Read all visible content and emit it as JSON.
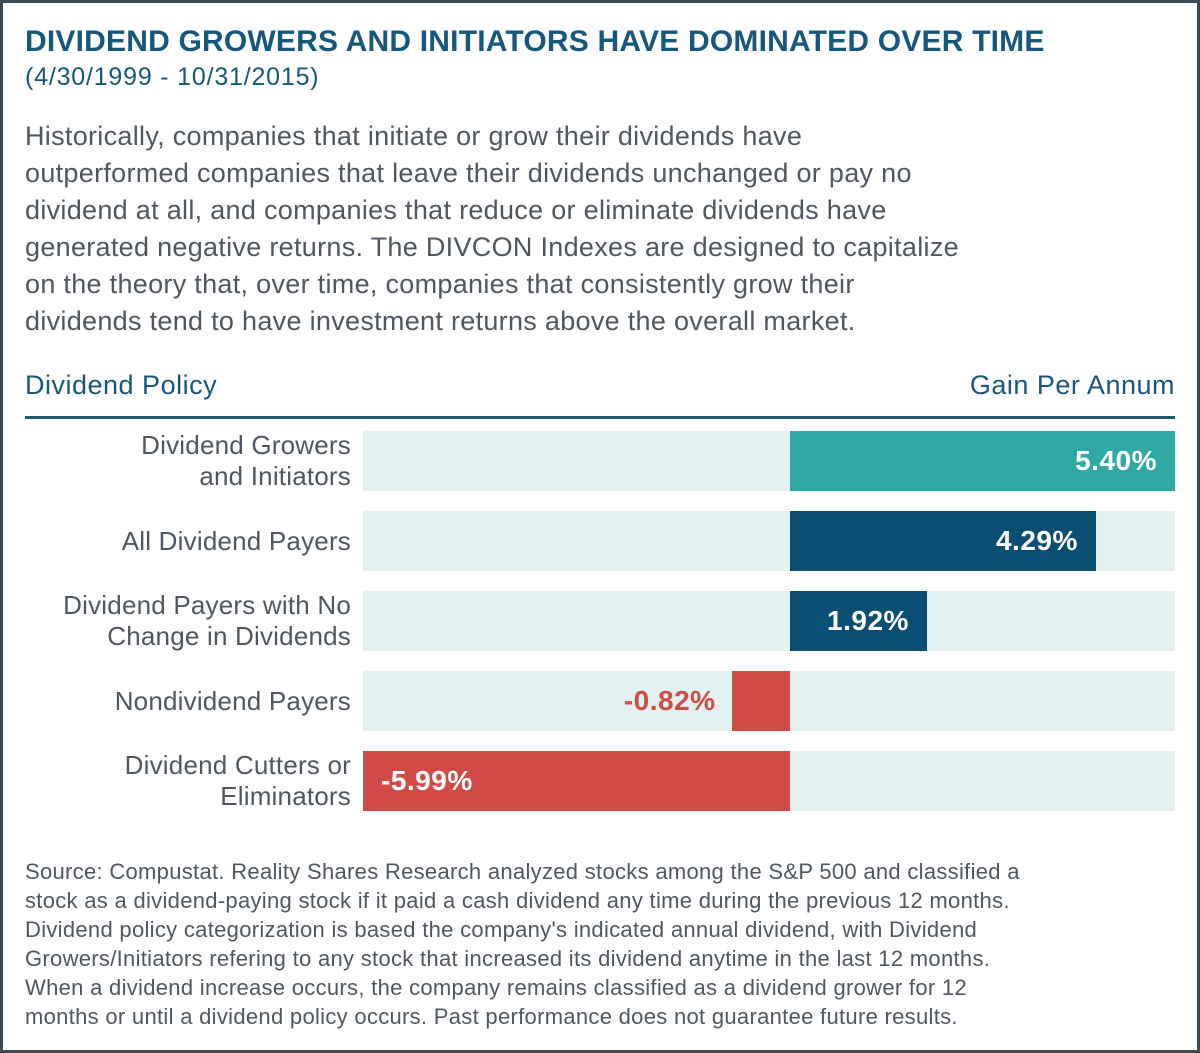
{
  "colors": {
    "title_blue": "#16587B",
    "text_slate": "#4E5760",
    "track": "#E3F2F1",
    "rule": "#235B77",
    "border": "#3C4A55",
    "teal": "#2FA9A5",
    "navy": "#0B4E73",
    "red": "#D04B45",
    "value_white": "#FFFFFF"
  },
  "header": {
    "title": "DIVIDEND GROWERS AND INITIATORS HAVE DOMINATED OVER TIME",
    "subtitle": "(4/30/1999 - 10/31/2015)"
  },
  "intro_paragraph_lines": [
    "Historically, companies that initiate or grow their dividends have",
    "outperformed companies that leave their dividends unchanged or pay no",
    "dividend at all, and companies that reduce or eliminate dividends have",
    "generated negative returns. The DIVCON Indexes are designed to capitalize",
    "on the theory that, over time, companies that consistently grow their",
    "dividends tend to have investment returns above the overall market."
  ],
  "chart_header": {
    "left": "Dividend Policy",
    "right": "Gain Per Annum"
  },
  "chart_data": {
    "type": "bar",
    "orientation": "horizontal",
    "title": "DIVIDEND GROWERS AND INITIATORS HAVE DOMINATED OVER TIME (4/30/1999 - 10/31/2015)",
    "xlabel": "Gain Per Annum",
    "ylabel": "Dividend Policy",
    "unit": "%",
    "xlim": [
      -5.99,
      5.4
    ],
    "grid": false,
    "categories": [
      "Dividend Growers and Initiators",
      "All Dividend Payers",
      "Dividend Payers with No Change in Dividends",
      "Nondividend Payers",
      "Dividend Cutters or Eliminators"
    ],
    "values": [
      5.4,
      4.29,
      1.92,
      -0.82,
      -5.99
    ],
    "rows": [
      {
        "label_lines": [
          "Dividend Growers",
          "and Initiators"
        ],
        "value": 5.4,
        "value_label": "5.40%",
        "bar_color": "#2FA9A5",
        "value_color": "#FFFFFF",
        "value_position": "inside-right"
      },
      {
        "label_lines": [
          "All Dividend Payers"
        ],
        "value": 4.29,
        "value_label": "4.29%",
        "bar_color": "#0B4E73",
        "value_color": "#FFFFFF",
        "value_position": "inside-right"
      },
      {
        "label_lines": [
          "Dividend Payers with No",
          "Change in Dividends"
        ],
        "value": 1.92,
        "value_label": "1.92%",
        "bar_color": "#0B4E73",
        "value_color": "#FFFFFF",
        "value_position": "inside-right"
      },
      {
        "label_lines": [
          "Nondividend Payers"
        ],
        "value": -0.82,
        "value_label": "-0.82%",
        "bar_color": "#D04B45",
        "value_color": "#D04B45",
        "value_position": "outside-left"
      },
      {
        "label_lines": [
          "Dividend Cutters or",
          "Eliminators"
        ],
        "value": -5.99,
        "value_label": "-5.99%",
        "bar_color": "#D04B45",
        "value_color": "#FFFFFF",
        "value_position": "inside-left"
      }
    ]
  },
  "source_lines": [
    "Source: Compustat. Reality Shares Research analyzed stocks among the S&P 500 and classified a",
    "stock as a dividend-paying stock if it paid a cash dividend any time during the previous 12 months.",
    "Dividend policy categorization is based the company's indicated annual dividend, with Dividend",
    "Growers/Initiators refering to any stock that increased its dividend anytime in the last 12 months.",
    "When a dividend increase occurs, the company remains classified as a dividend grower for 12",
    "months or until a dividend policy occurs. Past performance does not guarantee future results."
  ]
}
